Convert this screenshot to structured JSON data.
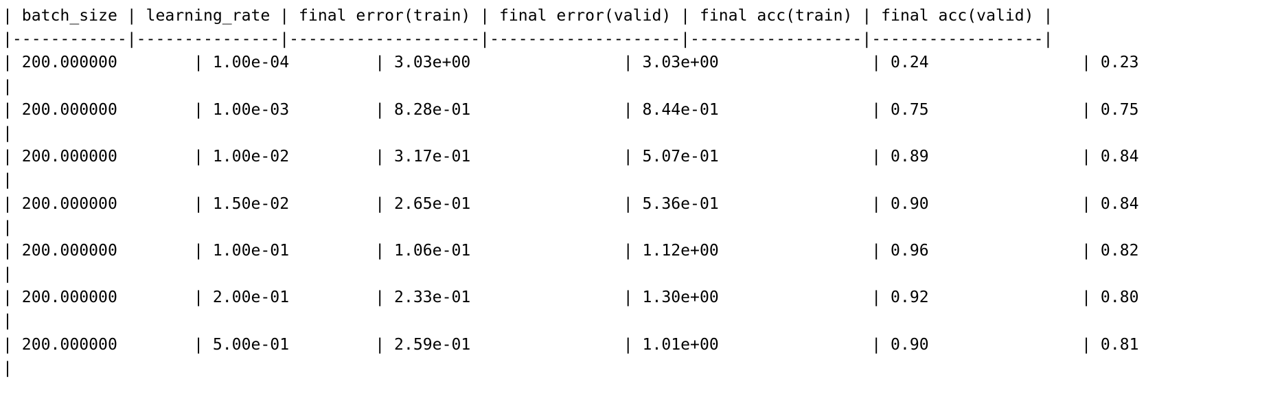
{
  "header_line": "| batch_size | learning_rate | final error(train) | final error(valid) | final acc(train) | final acc(valid) |",
  "separator_line": "|------------|---------------|--------------------|--------------------|------------------|------------------|",
  "rows": [
    {
      "text": "| 200.000000        | 1.00e-04         | 3.03e+00                | 3.03e+00                | 0.24                | 0.23"
    },
    {
      "text": "|"
    },
    {
      "text": "| 200.000000        | 1.00e-03         | 8.28e-01                | 8.44e-01                | 0.75                | 0.75"
    },
    {
      "text": "|"
    },
    {
      "text": "| 200.000000        | 1.00e-02         | 3.17e-01                | 5.07e-01                | 0.89                | 0.84"
    },
    {
      "text": "|"
    },
    {
      "text": "| 200.000000        | 1.50e-02         | 2.65e-01                | 5.36e-01                | 0.90                | 0.84"
    },
    {
      "text": "|"
    },
    {
      "text": "| 200.000000        | 1.00e-01         | 1.06e-01                | 1.12e+00                | 0.96                | 0.82"
    },
    {
      "text": "|"
    },
    {
      "text": "| 200.000000        | 2.00e-01         | 2.33e-01                | 1.30e+00                | 0.92                | 0.80"
    },
    {
      "text": "|"
    },
    {
      "text": "| 200.000000        | 5.00e-01         | 2.59e-01                | 1.01e+00                | 0.90                | 0.81"
    },
    {
      "text": "|"
    }
  ]
}
